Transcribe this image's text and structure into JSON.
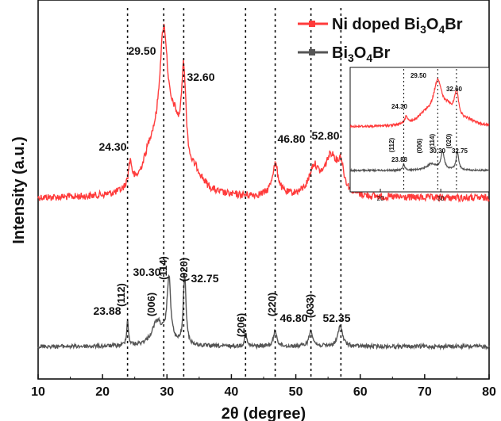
{
  "chart_data": {
    "type": "line",
    "title": "",
    "xlabel": "2θ (degree)",
    "ylabel": "Intensity (a.u.)",
    "xlim": [
      10,
      80
    ],
    "xticks": [
      "10",
      "20",
      "30",
      "40",
      "50",
      "60",
      "70",
      "80"
    ],
    "yticks_shown": false,
    "legend": {
      "position": "top-right",
      "entries": [
        {
          "label_main": "Ni doped Bi",
          "sub1": "3",
          "mid": "O",
          "sub2": "4",
          "tail": "Br",
          "color": "#ff3b3b"
        },
        {
          "label_main": "Bi",
          "sub1": "3",
          "mid": "O",
          "sub2": "4",
          "tail": "Br",
          "color": "#555555"
        }
      ]
    },
    "series": [
      {
        "name": "Ni doped Bi3O4Br",
        "color": "#ff3b3b",
        "baseline": 0.0,
        "peaks": [
          {
            "x": 24.3,
            "h": 0.9,
            "w": 0.35
          },
          {
            "x": 27.5,
            "h": 1.3,
            "w": 1.6
          },
          {
            "x": 29.5,
            "h": 5.0,
            "w": 0.85
          },
          {
            "x": 31.2,
            "h": 1.6,
            "w": 1.0
          },
          {
            "x": 32.6,
            "h": 3.5,
            "w": 0.45
          },
          {
            "x": 34.5,
            "h": 0.6,
            "w": 1.5
          },
          {
            "x": 46.8,
            "h": 1.1,
            "w": 0.6
          },
          {
            "x": 52.8,
            "h": 0.9,
            "w": 0.9
          },
          {
            "x": 55.5,
            "h": 1.4,
            "w": 1.3
          },
          {
            "x": 57.0,
            "h": 0.8,
            "w": 0.5
          }
        ]
      },
      {
        "name": "Bi3O4Br",
        "color": "#555555",
        "baseline": 0.0,
        "peaks": [
          {
            "x": 23.88,
            "h": 0.9,
            "w": 0.18
          },
          {
            "x": 28.5,
            "h": 0.9,
            "w": 1.0
          },
          {
            "x": 30.3,
            "h": 2.4,
            "w": 0.35
          },
          {
            "x": 32.75,
            "h": 2.6,
            "w": 0.25
          },
          {
            "x": 42.2,
            "h": 0.5,
            "w": 0.2
          },
          {
            "x": 46.8,
            "h": 0.6,
            "w": 0.3
          },
          {
            "x": 52.35,
            "h": 0.6,
            "w": 0.35
          },
          {
            "x": 56.9,
            "h": 0.8,
            "w": 0.4
          }
        ]
      }
    ],
    "reference_lines_x": [
      23.88,
      29.5,
      32.6,
      42.2,
      46.8,
      52.35,
      57.0
    ],
    "annotations_top": [
      {
        "text": "24.30",
        "x": 24.3
      },
      {
        "text": "29.50",
        "x": 29.5
      },
      {
        "text": "32.60",
        "x": 32.6
      },
      {
        "text": "46.80",
        "x": 46.8
      },
      {
        "text": "52.80",
        "x": 52.8
      }
    ],
    "annotations_bottom": [
      {
        "text": "23.88",
        "x": 23.88
      },
      {
        "text": "30.30",
        "x": 30.3
      },
      {
        "text": "32.75",
        "x": 32.75
      },
      {
        "text": "46.80",
        "x": 46.8
      },
      {
        "text": "52.35",
        "x": 52.35
      }
    ],
    "hkl_labels": [
      {
        "text": "(112)",
        "x": 23.88
      },
      {
        "text": "(006)",
        "x": 28.6
      },
      {
        "text": "(114)",
        "x": 30.3
      },
      {
        "text": "(020)",
        "x": 32.75
      },
      {
        "text": "(206)",
        "x": 42.2
      },
      {
        "text": "(220)",
        "x": 46.8
      },
      {
        "text": "(033)",
        "x": 52.35
      }
    ],
    "inset": {
      "xlim": [
        15,
        38
      ],
      "xticks": [
        "20",
        "30"
      ],
      "annotations_top": [
        {
          "text": "29.50",
          "x": 29.5
        },
        {
          "text": "24.30",
          "x": 24.3
        },
        {
          "text": "32.60",
          "x": 32.6
        }
      ],
      "annotations_bottom": [
        {
          "text": "23.88",
          "x": 23.88
        },
        {
          "text": "30.30",
          "x": 30.3
        },
        {
          "text": "32.75",
          "x": 32.75
        }
      ],
      "hkl_labels": [
        {
          "text": "(112)",
          "x": 23.88
        },
        {
          "text": "(006)",
          "x": 28.6
        },
        {
          "text": "(114)",
          "x": 30.3
        },
        {
          "text": "(020)",
          "x": 32.75
        }
      ],
      "reference_lines_x": [
        23.88,
        29.5,
        32.6
      ]
    }
  }
}
